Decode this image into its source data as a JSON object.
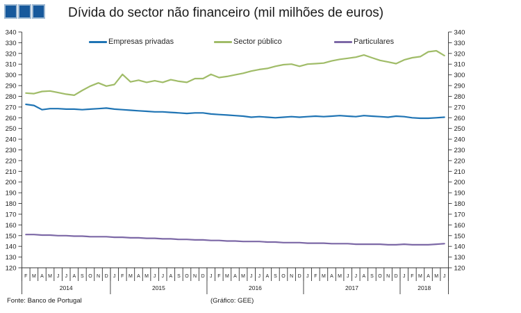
{
  "footer": {
    "source": "Fonte: Banco de Portugal",
    "credit": "(Gráfico: GEE)"
  },
  "chart_data": {
    "type": "line",
    "title": "Dívida do sector não financeiro (mil milhões de euros)",
    "xlabel": "",
    "ylabel": "",
    "ylim": [
      120,
      340
    ],
    "ytick_step": 10,
    "grid": false,
    "legend_position": "top",
    "axis_color": "#333333",
    "x_months": [
      "F",
      "M",
      "A",
      "M",
      "J",
      "J",
      "A",
      "S",
      "O",
      "N",
      "D",
      "J",
      "F",
      "M",
      "A",
      "M",
      "J",
      "J",
      "A",
      "S",
      "O",
      "N",
      "D",
      "J",
      "F",
      "M",
      "A",
      "M",
      "J",
      "J",
      "A",
      "S",
      "O",
      "N",
      "D",
      "J",
      "F",
      "M",
      "A",
      "M",
      "J",
      "J",
      "A",
      "S",
      "O",
      "N",
      "D",
      "J",
      "F",
      "M",
      "A",
      "M",
      "J"
    ],
    "years": [
      {
        "label": "2014",
        "count": 11
      },
      {
        "label": "2015",
        "count": 12
      },
      {
        "label": "2016",
        "count": 12
      },
      {
        "label": "2017",
        "count": 12
      },
      {
        "label": "2018",
        "count": 6
      }
    ],
    "series": [
      {
        "name": "Empresas privadas",
        "color": "#1F74B4",
        "values": [
          272.5,
          271.5,
          267.5,
          268.5,
          268.5,
          268,
          268,
          267.5,
          268,
          268.5,
          269,
          268,
          267.5,
          267,
          266.5,
          266,
          265.5,
          265.5,
          265,
          264.5,
          264,
          264.5,
          264.5,
          263.5,
          263,
          262.5,
          262,
          261.5,
          260.5,
          261,
          260.5,
          260,
          260.5,
          261,
          260.5,
          261,
          261.5,
          261,
          261.5,
          262,
          261.5,
          261,
          262,
          261.5,
          261,
          260.5,
          261.5,
          261,
          260,
          259.5,
          259.5,
          260,
          260.5
        ]
      },
      {
        "name": "Sector público",
        "color": "#A0BC68",
        "values": [
          283,
          282.5,
          284.5,
          285,
          283.5,
          282,
          281,
          285.5,
          289.5,
          292.5,
          289.5,
          291,
          300.5,
          293.5,
          295,
          293,
          294.5,
          293,
          295.5,
          294,
          293,
          296.5,
          296.5,
          300.5,
          297.5,
          298.5,
          300,
          301.5,
          303.5,
          305,
          306,
          308,
          309.5,
          310,
          308,
          310,
          310.5,
          311,
          313,
          314.5,
          315.5,
          316.5,
          318.5,
          316,
          313.5,
          312,
          310.5,
          314,
          316,
          317,
          321.5,
          322.5,
          318
        ]
      },
      {
        "name": "Particulares",
        "color": "#7C68A6",
        "values": [
          151,
          151,
          150.5,
          150.5,
          150,
          150,
          149.5,
          149.5,
          149,
          149,
          149,
          148.5,
          148.5,
          148,
          148,
          147.5,
          147.5,
          147,
          147,
          146.5,
          146.5,
          146,
          146,
          145.5,
          145.5,
          145,
          145,
          144.5,
          144.5,
          144.5,
          144,
          144,
          143.5,
          143.5,
          143.5,
          143,
          143,
          143,
          142.5,
          142.5,
          142.5,
          142,
          142,
          142,
          142,
          141.5,
          141.5,
          142,
          141.5,
          141.5,
          141.5,
          142,
          142.5
        ]
      }
    ]
  }
}
